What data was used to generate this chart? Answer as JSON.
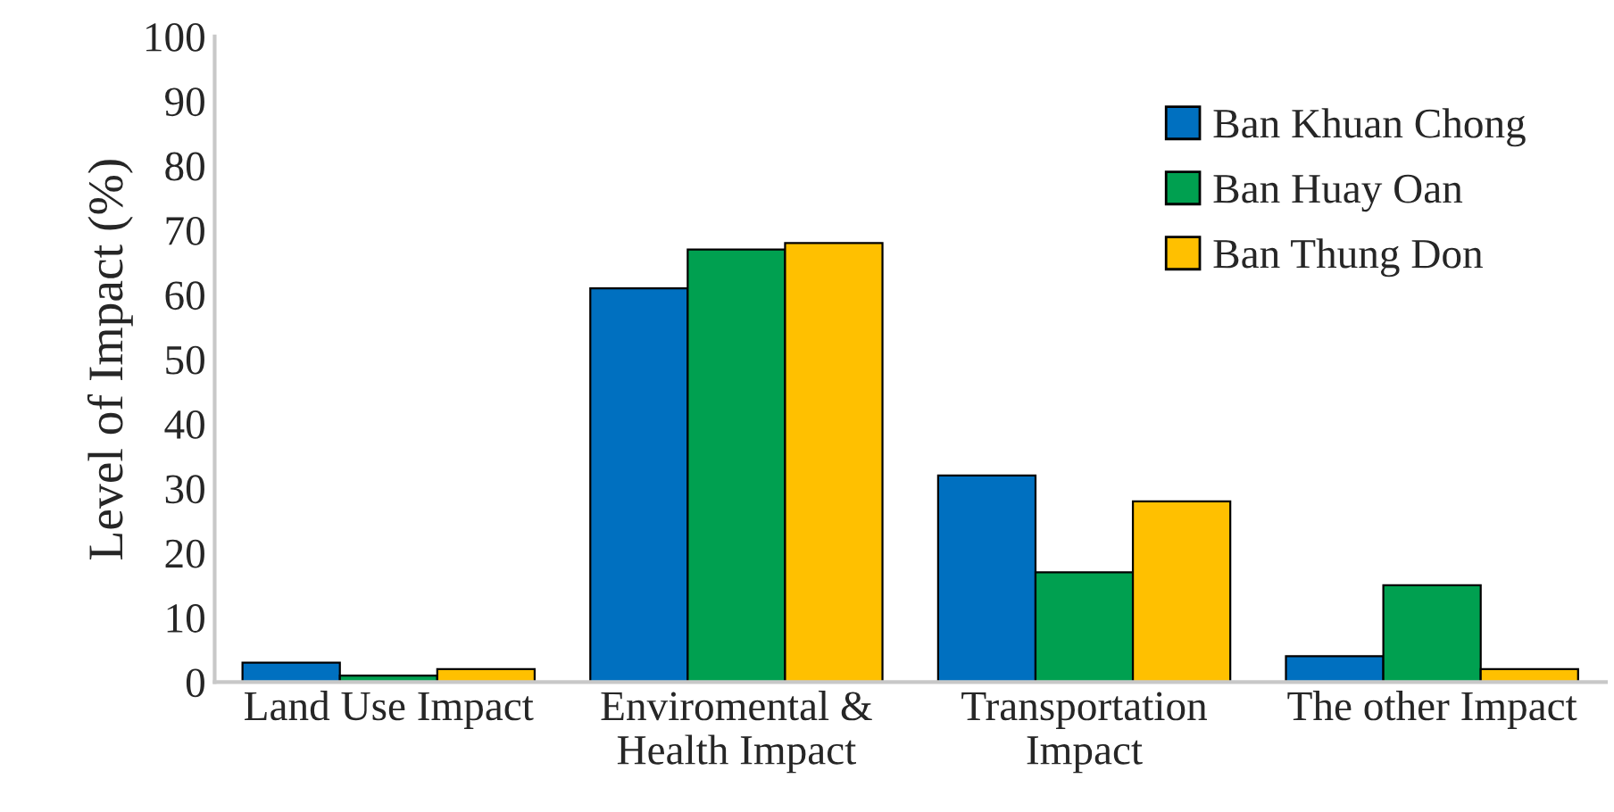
{
  "chart_data": {
    "type": "bar",
    "ylabel": "Level of Impact (%)",
    "categories": [
      "Land Use Impact",
      "Enviromental &\nHealth Impact",
      "Transportation\nImpact",
      "The other Impact"
    ],
    "series": [
      {
        "name": "Ban Khuan Chong",
        "color": "#0070c0",
        "values": [
          3,
          61,
          32,
          4
        ]
      },
      {
        "name": "Ban Huay Oan",
        "color": "#00a050",
        "values": [
          1,
          67,
          17,
          15
        ]
      },
      {
        "name": "Ban Thung Don",
        "color": "#ffc000",
        "values": [
          2,
          68,
          28,
          2
        ]
      }
    ],
    "ylim": [
      0,
      100
    ],
    "yticks": [
      0,
      10,
      20,
      30,
      40,
      50,
      60,
      70,
      80,
      90,
      100
    ],
    "grid": false,
    "legend": "top right"
  }
}
